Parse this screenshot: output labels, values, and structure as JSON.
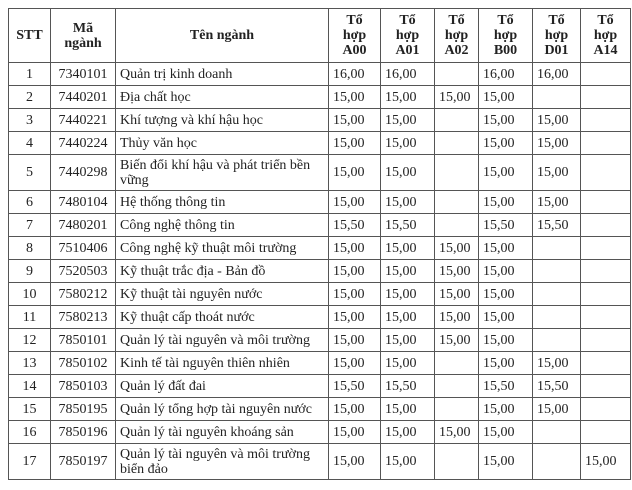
{
  "headers": [
    "STT",
    "Mã ngành",
    "Tên ngành",
    "Tổ hợp A00",
    "Tổ hợp A01",
    "Tổ hợp A02",
    "Tổ hợp B00",
    "Tổ hợp D01",
    "Tổ hợp A14"
  ],
  "rows": [
    [
      "1",
      "7340101",
      "Quản trị kinh doanh",
      "16,00",
      "16,00",
      "",
      "16,00",
      "16,00",
      ""
    ],
    [
      "2",
      "7440201",
      "Địa chất học",
      "15,00",
      "15,00",
      "15,00",
      "15,00",
      "",
      ""
    ],
    [
      "3",
      "7440221",
      "Khí tượng và khí hậu học",
      "15,00",
      "15,00",
      "",
      "15,00",
      "15,00",
      ""
    ],
    [
      "4",
      "7440224",
      "Thủy văn học",
      "15,00",
      "15,00",
      "",
      "15,00",
      "15,00",
      ""
    ],
    [
      "5",
      "7440298",
      "Biến đổi khí hậu và phát triển bền vững",
      "15,00",
      "15,00",
      "",
      "15,00",
      "15,00",
      ""
    ],
    [
      "6",
      "7480104",
      "Hệ thống thông tin",
      "15,00",
      "15,00",
      "",
      "15,00",
      "15,00",
      ""
    ],
    [
      "7",
      "7480201",
      "Công nghệ thông tin",
      "15,50",
      "15,50",
      "",
      "15,50",
      "15,50",
      ""
    ],
    [
      "8",
      "7510406",
      "Công nghệ kỹ thuật môi trường",
      "15,00",
      "15,00",
      "15,00",
      "15,00",
      "",
      ""
    ],
    [
      "9",
      "7520503",
      "Kỹ thuật trắc địa - Bản đồ",
      "15,00",
      "15,00",
      "15,00",
      "15,00",
      "",
      ""
    ],
    [
      "10",
      "7580212",
      "Kỹ thuật tài nguyên nước",
      "15,00",
      "15,00",
      "15,00",
      "15,00",
      "",
      ""
    ],
    [
      "11",
      "7580213",
      "Kỹ thuật cấp thoát nước",
      "15,00",
      "15,00",
      "15,00",
      "15,00",
      "",
      ""
    ],
    [
      "12",
      "7850101",
      "Quản lý tài nguyên và môi trường",
      "15,00",
      "15,00",
      "15,00",
      "15,00",
      "",
      ""
    ],
    [
      "13",
      "7850102",
      "Kinh tế tài nguyên thiên nhiên",
      "15,00",
      "15,00",
      "",
      "15,00",
      "15,00",
      ""
    ],
    [
      "14",
      "7850103",
      "Quản lý đất đai",
      "15,50",
      "15,50",
      "",
      "15,50",
      "15,50",
      ""
    ],
    [
      "15",
      "7850195",
      "Quản lý tổng hợp tài nguyên nước",
      "15,00",
      "15,00",
      "",
      "15,00",
      "15,00",
      ""
    ],
    [
      "16",
      "7850196",
      "Quản lý tài nguyên khoáng sản",
      "15,00",
      "15,00",
      "15,00",
      "15,00",
      "",
      ""
    ],
    [
      "17",
      "7850197",
      "Quản lý tài nguyên và môi trường biển đảo",
      "15,00",
      "15,00",
      "",
      "15,00",
      "",
      "15,00"
    ]
  ]
}
